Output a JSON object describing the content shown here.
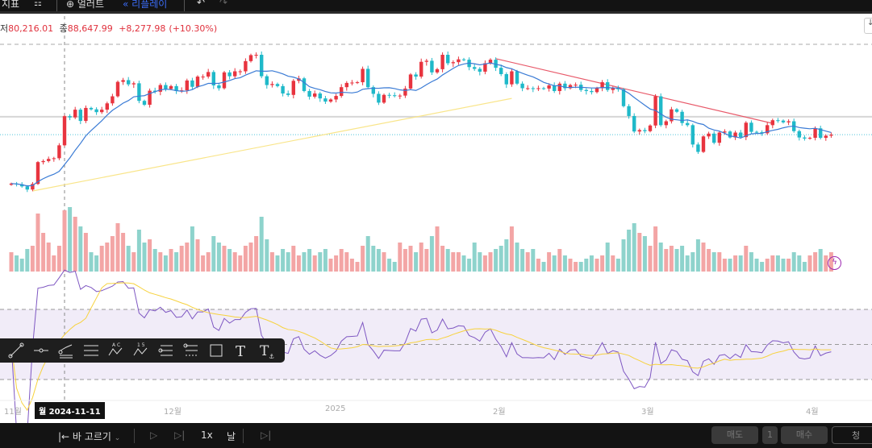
{
  "topbar": {
    "indicators_label": "지표",
    "templates_icon": "templates-icon",
    "alert_label": "얼러트",
    "replay_label": "리플레이",
    "replay_color": "#3b6cf6"
  },
  "ohlc_legend": {
    "low_label": "저",
    "low": "80,216.01",
    "close_label": "종",
    "close": "88,647.99",
    "change": "+8,277.98",
    "change_pct": "(+10.30%)"
  },
  "x_axis": {
    "labels": [
      "11월",
      "12월",
      "2025",
      "2월",
      "3월",
      "4월"
    ],
    "crosshair_label": "월 2024-11-11"
  },
  "drawing_tools": [
    "trend-line-icon",
    "horizontal-ray-icon",
    "fib-retracement-icon",
    "parallel-channel-icon",
    "abcd-pattern-icon",
    "elliott-wave-icon",
    "gann-fan-icon",
    "pitchfork-icon",
    "rectangle-icon",
    "text-icon",
    "anchored-text-icon"
  ],
  "replay_bar": {
    "select_bar_label": "바 고르기",
    "speed_label": "1x",
    "interval_label": "날",
    "sell_label": "매도",
    "quantity": "1",
    "buy_label": "매수",
    "close_label": "청"
  },
  "colors": {
    "up": "#e8343f",
    "down": "#1fb9c9",
    "up_volume": "#f3a5a5",
    "down_volume": "#8ed3cc",
    "ma": "#3a7bd5",
    "rsi": "#7e57c2",
    "rsi_signal": "#f7d23e",
    "trendline_support": "#f9e58a",
    "trendline_resistance": "#e85a6a"
  },
  "chart_data": {
    "type": "candlestick",
    "candles_date_close": [
      [
        "2024-11-01",
        69500
      ],
      [
        "2024-11-02",
        69300
      ],
      [
        "2024-11-03",
        68700
      ],
      [
        "2024-11-04",
        67800
      ],
      [
        "2024-11-05",
        69400
      ],
      [
        "2024-11-06",
        75600
      ],
      [
        "2024-11-07",
        75900
      ],
      [
        "2024-11-08",
        76500
      ],
      [
        "2024-11-09",
        76700
      ],
      [
        "2024-11-10",
        80370
      ],
      [
        "2024-11-11",
        88647.99
      ],
      [
        "2024-11-12",
        88300
      ],
      [
        "2024-11-13",
        90500
      ],
      [
        "2024-11-14",
        87300
      ],
      [
        "2024-11-15",
        91000
      ],
      [
        "2024-11-16",
        90600
      ],
      [
        "2024-11-17",
        89800
      ],
      [
        "2024-11-18",
        90500
      ],
      [
        "2024-11-19",
        92300
      ],
      [
        "2024-11-20",
        94300
      ],
      [
        "2024-11-21",
        98400
      ],
      [
        "2024-11-22",
        98900
      ],
      [
        "2024-11-23",
        97700
      ],
      [
        "2024-11-24",
        98000
      ],
      [
        "2024-11-25",
        93000
      ],
      [
        "2024-11-26",
        91900
      ],
      [
        "2024-11-27",
        95900
      ],
      [
        "2024-11-28",
        95600
      ],
      [
        "2024-11-29",
        97500
      ],
      [
        "2024-11-30",
        96400
      ],
      [
        "2024-12-01",
        97200
      ],
      [
        "2024-12-02",
        95800
      ],
      [
        "2024-12-03",
        96000
      ],
      [
        "2024-12-04",
        98800
      ],
      [
        "2024-12-05",
        97000
      ],
      [
        "2024-12-06",
        99900
      ],
      [
        "2024-12-07",
        99900
      ],
      [
        "2024-12-08",
        101200
      ],
      [
        "2024-12-09",
        97400
      ],
      [
        "2024-12-10",
        96600
      ],
      [
        "2024-12-11",
        101100
      ],
      [
        "2024-12-12",
        100000
      ],
      [
        "2024-12-13",
        101400
      ],
      [
        "2024-12-14",
        101400
      ],
      [
        "2024-12-15",
        104300
      ],
      [
        "2024-12-16",
        106000
      ],
      [
        "2024-12-17",
        106100
      ],
      [
        "2024-12-18",
        100000
      ],
      [
        "2024-12-19",
        97500
      ],
      [
        "2024-12-20",
        97800
      ],
      [
        "2024-12-21",
        97200
      ],
      [
        "2024-12-22",
        95100
      ],
      [
        "2024-12-23",
        94700
      ],
      [
        "2024-12-24",
        98700
      ],
      [
        "2024-12-25",
        99400
      ],
      [
        "2024-12-26",
        95800
      ],
      [
        "2024-12-27",
        94200
      ],
      [
        "2024-12-28",
        95100
      ],
      [
        "2024-12-29",
        93700
      ],
      [
        "2024-12-30",
        92800
      ],
      [
        "2024-12-31",
        93400
      ],
      [
        "2025-01-01",
        94400
      ],
      [
        "2025-01-02",
        96900
      ],
      [
        "2025-01-03",
        98100
      ],
      [
        "2025-01-04",
        98200
      ],
      [
        "2025-01-05",
        98300
      ],
      [
        "2025-01-06",
        102100
      ],
      [
        "2025-01-07",
        96900
      ],
      [
        "2025-01-08",
        95000
      ],
      [
        "2025-01-09",
        92500
      ],
      [
        "2025-01-10",
        94700
      ],
      [
        "2025-01-11",
        94600
      ],
      [
        "2025-01-12",
        94500
      ],
      [
        "2025-01-13",
        94500
      ],
      [
        "2025-01-14",
        96500
      ],
      [
        "2025-01-15",
        100500
      ],
      [
        "2025-01-16",
        99900
      ],
      [
        "2025-01-17",
        104100
      ],
      [
        "2025-01-18",
        104400
      ],
      [
        "2025-01-19",
        101100
      ],
      [
        "2025-01-20",
        102000
      ],
      [
        "2025-01-21",
        106100
      ],
      [
        "2025-01-22",
        103700
      ],
      [
        "2025-01-23",
        104000
      ],
      [
        "2025-01-24",
        104800
      ],
      [
        "2025-01-25",
        104700
      ],
      [
        "2025-01-26",
        102600
      ],
      [
        "2025-01-27",
        102100
      ],
      [
        "2025-01-28",
        101300
      ],
      [
        "2025-01-29",
        103700
      ],
      [
        "2025-01-30",
        104700
      ],
      [
        "2025-01-31",
        102400
      ],
      [
        "2025-02-01",
        100600
      ],
      [
        "2025-02-02",
        97700
      ],
      [
        "2025-02-03",
        101400
      ],
      [
        "2025-02-04",
        97900
      ],
      [
        "2025-02-05",
        96600
      ],
      [
        "2025-02-06",
        96600
      ],
      [
        "2025-02-07",
        96500
      ],
      [
        "2025-02-08",
        96600
      ],
      [
        "2025-02-09",
        96500
      ],
      [
        "2025-02-10",
        97400
      ],
      [
        "2025-02-11",
        95800
      ],
      [
        "2025-02-12",
        97900
      ],
      [
        "2025-02-13",
        96600
      ],
      [
        "2025-02-14",
        97500
      ],
      [
        "2025-02-15",
        97600
      ],
      [
        "2025-02-16",
        96100
      ],
      [
        "2025-02-17",
        95800
      ],
      [
        "2025-02-18",
        95500
      ],
      [
        "2025-02-19",
        96600
      ],
      [
        "2025-02-20",
        98300
      ],
      [
        "2025-02-21",
        96100
      ],
      [
        "2025-02-22",
        96600
      ],
      [
        "2025-02-23",
        96300
      ],
      [
        "2025-02-24",
        91500
      ],
      [
        "2025-02-25",
        88700
      ],
      [
        "2025-02-26",
        84300
      ],
      [
        "2025-02-27",
        84700
      ],
      [
        "2025-02-28",
        84400
      ],
      [
        "2025-03-01",
        86000
      ],
      [
        "2025-03-02",
        94300
      ],
      [
        "2025-03-03",
        86100
      ],
      [
        "2025-03-04",
        87200
      ],
      [
        "2025-03-05",
        90600
      ],
      [
        "2025-03-06",
        89900
      ],
      [
        "2025-03-07",
        86700
      ],
      [
        "2025-03-08",
        86100
      ],
      [
        "2025-03-09",
        80600
      ],
      [
        "2025-03-10",
        78500
      ],
      [
        "2025-03-11",
        82900
      ],
      [
        "2025-03-12",
        83700
      ],
      [
        "2025-03-13",
        81100
      ],
      [
        "2025-03-14",
        84000
      ],
      [
        "2025-03-15",
        84300
      ],
      [
        "2025-03-16",
        82600
      ],
      [
        "2025-03-17",
        84000
      ],
      [
        "2025-03-18",
        82700
      ],
      [
        "2025-03-19",
        86800
      ],
      [
        "2025-03-20",
        84200
      ],
      [
        "2025-03-21",
        84100
      ],
      [
        "2025-03-22",
        83800
      ],
      [
        "2025-03-23",
        86100
      ],
      [
        "2025-03-24",
        87500
      ],
      [
        "2025-03-25",
        87400
      ],
      [
        "2025-03-26",
        86900
      ],
      [
        "2025-03-27",
        87200
      ],
      [
        "2025-03-28",
        84400
      ],
      [
        "2025-03-29",
        82600
      ],
      [
        "2025-03-30",
        82300
      ],
      [
        "2025-03-31",
        82500
      ],
      [
        "2025-04-01",
        85200
      ],
      [
        "2025-04-02",
        82500
      ],
      [
        "2025-04-03",
        83100
      ],
      [
        "2025-04-04",
        83400
      ]
    ],
    "volume_relative": [
      30,
      25,
      20,
      35,
      40,
      90,
      60,
      45,
      25,
      40,
      95,
      100,
      85,
      70,
      60,
      30,
      25,
      40,
      45,
      55,
      75,
      60,
      40,
      30,
      65,
      45,
      50,
      35,
      30,
      25,
      35,
      30,
      40,
      45,
      70,
      50,
      25,
      30,
      55,
      45,
      40,
      35,
      30,
      25,
      40,
      45,
      55,
      85,
      50,
      30,
      25,
      35,
      30,
      40,
      25,
      30,
      35,
      25,
      30,
      35,
      20,
      25,
      35,
      30,
      20,
      15,
      40,
      55,
      40,
      35,
      30,
      20,
      15,
      45,
      35,
      40,
      30,
      45,
      35,
      55,
      70,
      40,
      35,
      30,
      30,
      25,
      20,
      45,
      30,
      25,
      30,
      35,
      40,
      50,
      70,
      45,
      35,
      30,
      35,
      20,
      15,
      30,
      25,
      35,
      25,
      20,
      15,
      15,
      20,
      25,
      20,
      25,
      45,
      25,
      20,
      50,
      65,
      75,
      60,
      55,
      40,
      70,
      45,
      35,
      40,
      35,
      40,
      25,
      30,
      50,
      45,
      35,
      30,
      30,
      20,
      20,
      25,
      25,
      40,
      30,
      20,
      15,
      20,
      25,
      25,
      20,
      20,
      30,
      25,
      15,
      25,
      30,
      35,
      25,
      30
    ],
    "horizontal_line_price": 88500,
    "current_price": 83400,
    "trendlines": [
      {
        "kind": "support",
        "from": [
          "2024-11-05",
          67400
        ],
        "to": [
          "2025-02-03",
          93700
        ]
      },
      {
        "kind": "resistance",
        "from": [
          "2025-01-31",
          105000
        ],
        "to": [
          "2025-03-24",
          86600
        ]
      }
    ],
    "rsi_levels": [
      70,
      50,
      30
    ]
  }
}
